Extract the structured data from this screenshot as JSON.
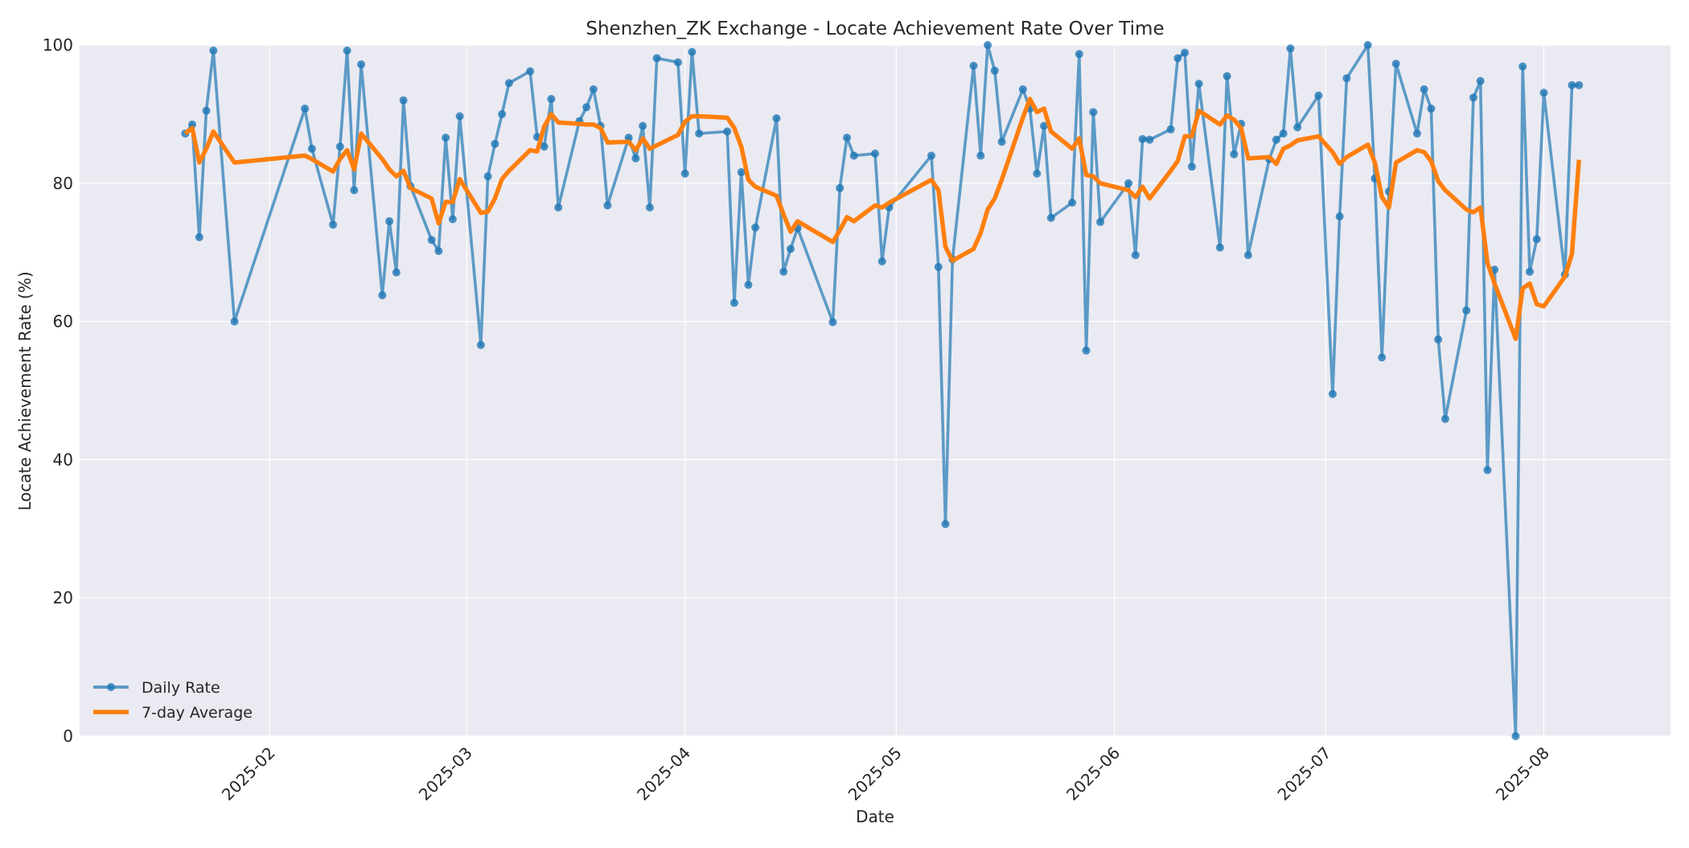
{
  "chart_data": {
    "type": "line",
    "title": "Shenzhen_ZK Exchange - Locate Achievement Rate Over Time",
    "xlabel": "Date",
    "ylabel": "Locate Achievement Rate (%)",
    "ylim": [
      0,
      100
    ],
    "xlim": [
      "2025-01-05",
      "2025-08-19"
    ],
    "yticks": [
      0,
      20,
      40,
      60,
      80,
      100
    ],
    "xticks": [
      "2025-02",
      "2025-03",
      "2025-04",
      "2025-05",
      "2025-06",
      "2025-07",
      "2025-08"
    ],
    "grid": true,
    "legend_position": "lower-left",
    "colors": {
      "daily": "#1f77b4",
      "average": "#ff7f0e",
      "background": "#eaeaf2"
    },
    "x": [
      "2025-01-20",
      "2025-01-21",
      "2025-01-22",
      "2025-01-23",
      "2025-01-24",
      "2025-01-27",
      "2025-02-06",
      "2025-02-07",
      "2025-02-10",
      "2025-02-11",
      "2025-02-12",
      "2025-02-13",
      "2025-02-14",
      "2025-02-17",
      "2025-02-18",
      "2025-02-19",
      "2025-02-20",
      "2025-02-21",
      "2025-02-24",
      "2025-02-25",
      "2025-02-26",
      "2025-02-27",
      "2025-02-28",
      "2025-03-03",
      "2025-03-04",
      "2025-03-05",
      "2025-03-06",
      "2025-03-07",
      "2025-03-10",
      "2025-03-11",
      "2025-03-12",
      "2025-03-13",
      "2025-03-14",
      "2025-03-17",
      "2025-03-18",
      "2025-03-19",
      "2025-03-20",
      "2025-03-21",
      "2025-03-24",
      "2025-03-25",
      "2025-03-26",
      "2025-03-27",
      "2025-03-28",
      "2025-03-31",
      "2025-04-01",
      "2025-04-02",
      "2025-04-03",
      "2025-04-07",
      "2025-04-08",
      "2025-04-09",
      "2025-04-10",
      "2025-04-11",
      "2025-04-14",
      "2025-04-15",
      "2025-04-16",
      "2025-04-17",
      "2025-04-22",
      "2025-04-23",
      "2025-04-24",
      "2025-04-25",
      "2025-04-28",
      "2025-04-29",
      "2025-04-30",
      "2025-05-06",
      "2025-05-07",
      "2025-05-08",
      "2025-05-09",
      "2025-05-12",
      "2025-05-13",
      "2025-05-14",
      "2025-05-15",
      "2025-05-16",
      "2025-05-19",
      "2025-05-20",
      "2025-05-21",
      "2025-05-22",
      "2025-05-23",
      "2025-05-26",
      "2025-05-27",
      "2025-05-28",
      "2025-05-29",
      "2025-05-30",
      "2025-06-03",
      "2025-06-04",
      "2025-06-05",
      "2025-06-06",
      "2025-06-09",
      "2025-06-10",
      "2025-06-11",
      "2025-06-12",
      "2025-06-13",
      "2025-06-16",
      "2025-06-17",
      "2025-06-18",
      "2025-06-19",
      "2025-06-20",
      "2025-06-23",
      "2025-06-24",
      "2025-06-25",
      "2025-06-26",
      "2025-06-27",
      "2025-06-30",
      "2025-07-02",
      "2025-07-03",
      "2025-07-04",
      "2025-07-07",
      "2025-07-08",
      "2025-07-09",
      "2025-07-10",
      "2025-07-11",
      "2025-07-14",
      "2025-07-15",
      "2025-07-16",
      "2025-07-17",
      "2025-07-18",
      "2025-07-21",
      "2025-07-22",
      "2025-07-23",
      "2025-07-24",
      "2025-07-25",
      "2025-07-28",
      "2025-07-29",
      "2025-07-30",
      "2025-07-31",
      "2025-08-01",
      "2025-08-04",
      "2025-08-05",
      "2025-08-06"
    ],
    "series": [
      {
        "name": "Daily Rate",
        "marker": "o",
        "values": [
          87.2,
          88.5,
          72.2,
          90.5,
          99.2,
          60.0,
          90.8,
          85.0,
          74.0,
          85.3,
          99.2,
          79.0,
          97.2,
          63.8,
          74.5,
          67.1,
          92.0,
          79.6,
          71.8,
          70.2,
          86.6,
          74.8,
          89.7,
          56.6,
          81.0,
          85.7,
          90.0,
          94.5,
          96.2,
          86.7,
          85.3,
          92.2,
          76.5,
          89.0,
          91.0,
          93.6,
          88.3,
          76.8,
          86.6,
          83.6,
          88.3,
          76.5,
          98.1,
          97.5,
          81.4,
          99.0,
          87.2,
          87.5,
          62.7,
          81.6,
          65.3,
          73.6,
          89.4,
          67.2,
          70.5,
          73.5,
          59.9,
          79.3,
          86.6,
          84.0,
          84.3,
          68.7,
          76.5,
          84.0,
          67.9,
          30.7,
          69.0,
          97.0,
          84.0,
          100.0,
          96.3,
          86.0,
          93.6,
          90.8,
          81.4,
          88.3,
          75.0,
          77.2,
          98.7,
          55.8,
          90.3,
          74.4,
          80.0,
          69.6,
          86.4,
          86.3,
          87.8,
          98.1,
          98.9,
          82.4,
          94.4,
          70.7,
          95.5,
          84.2,
          88.6,
          69.6,
          83.5,
          86.3,
          87.2,
          99.5,
          88.1,
          92.7,
          49.5,
          75.2,
          95.2,
          100.0,
          80.7,
          54.8,
          78.8,
          97.3,
          87.2,
          93.6,
          90.8,
          57.4,
          45.9,
          61.6,
          92.4,
          94.8,
          38.5,
          67.5,
          0.0,
          96.9,
          67.2,
          71.9,
          93.1,
          66.8,
          94.2,
          94.2
        ]
      },
      {
        "name": "7-day Average",
        "values": [
          87.2,
          88.0,
          83.0,
          85.0,
          87.5,
          83.0,
          84.0,
          83.5,
          81.7,
          83.5,
          84.8,
          82.0,
          87.2,
          83.5,
          82.0,
          81.0,
          81.8,
          79.3,
          77.8,
          74.2,
          77.3,
          77.3,
          80.6,
          75.7,
          75.9,
          77.8,
          80.6,
          81.8,
          84.8,
          84.6,
          88.2,
          90.0,
          88.8,
          88.6,
          88.5,
          88.5,
          88.0,
          85.9,
          86.0,
          84.8,
          86.5,
          85.0,
          85.5,
          87.0,
          88.9,
          89.7,
          89.7,
          89.5,
          88.0,
          85.3,
          80.5,
          79.5,
          78.2,
          75.5,
          73.0,
          74.5,
          71.5,
          73.2,
          75.1,
          74.5,
          76.8,
          76.5,
          77.2,
          80.5,
          79.0,
          70.8,
          68.8,
          70.5,
          72.8,
          76.2,
          77.8,
          80.5,
          89.5,
          92.2,
          90.3,
          90.8,
          87.5,
          85.0,
          86.5,
          81.2,
          81.0,
          80.0,
          79.0,
          78.0,
          79.5,
          77.8,
          81.8,
          83.2,
          86.8,
          86.8,
          90.5,
          88.5,
          89.8,
          89.2,
          88.0,
          83.6,
          83.8,
          82.8,
          85.0,
          85.5,
          86.2,
          86.8,
          84.5,
          82.8,
          83.8,
          85.6,
          83.0,
          78.0,
          76.5,
          83.0,
          84.8,
          84.5,
          83.2,
          80.3,
          79.0,
          76.2,
          75.8,
          76.5,
          68.5,
          65.5,
          57.5,
          64.8,
          65.5,
          62.5,
          62.2,
          66.5,
          69.8,
          83.4
        ]
      }
    ]
  }
}
